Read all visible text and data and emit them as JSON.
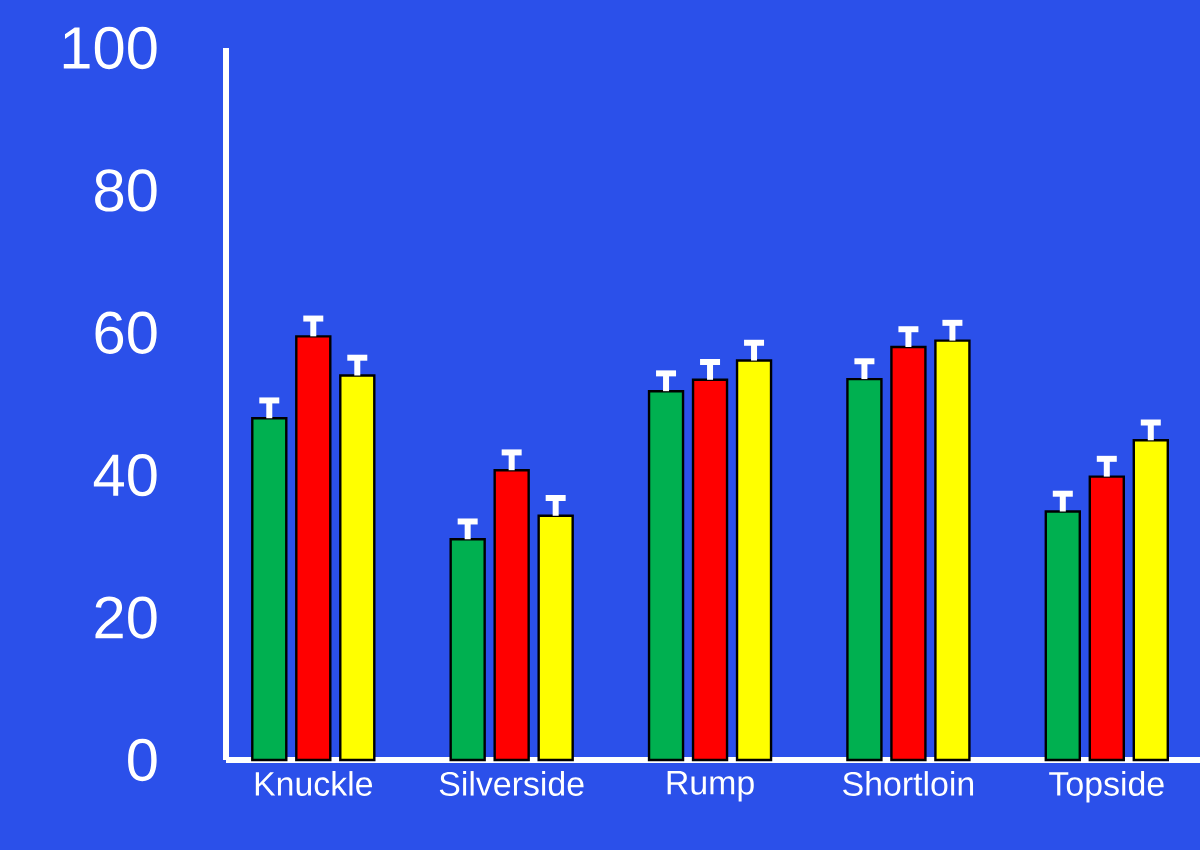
{
  "chart_data": {
    "type": "bar",
    "categories": [
      "Knuckle",
      "Silverside",
      "Rump",
      "Shortloin",
      "Topside"
    ],
    "series": [
      {
        "color": "#00b050",
        "values": [
          48,
          31,
          51.8,
          53.5,
          34.9
        ],
        "errors": [
          [
            48,
            50.5
          ],
          [
            31,
            33.5
          ],
          [
            51.8,
            54.3
          ],
          [
            53.5,
            56
          ],
          [
            34.9,
            37.4
          ]
        ]
      },
      {
        "color": "#ff0000",
        "values": [
          59.5,
          40.7,
          53.4,
          58,
          39.8
        ],
        "errors": [
          [
            59.5,
            62
          ],
          [
            40.7,
            43.2
          ],
          [
            53.4,
            55.9
          ],
          [
            58,
            60.5
          ],
          [
            39.8,
            42.3
          ]
        ]
      },
      {
        "color": "#ffff00",
        "values": [
          54,
          34.3,
          56.1,
          58.9,
          44.9
        ],
        "errors": [
          [
            54,
            56.5
          ],
          [
            34.3,
            36.8
          ],
          [
            56.1,
            58.6
          ],
          [
            58.9,
            61.4
          ],
          [
            44.9,
            47.4
          ]
        ]
      }
    ],
    "ylim": [
      0,
      100
    ],
    "yticks": [
      0,
      20,
      40,
      60,
      80,
      100
    ]
  }
}
